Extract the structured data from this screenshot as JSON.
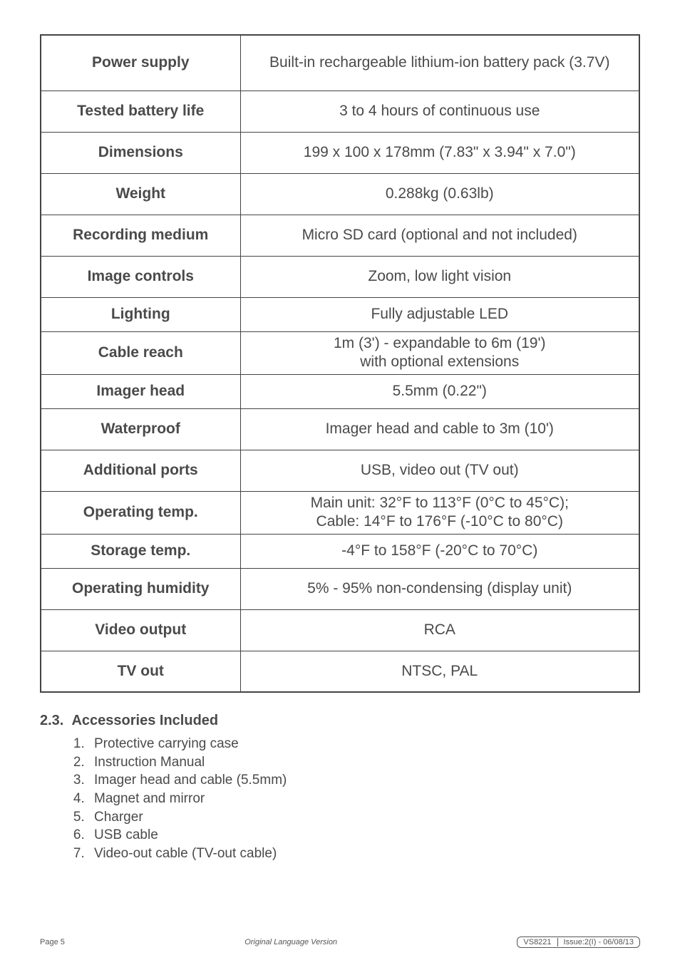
{
  "table": {
    "rows": [
      {
        "label": "Power supply",
        "value": "Built-in rechargeable lithium-ion battery pack (3.7V)",
        "height": "h-tall"
      },
      {
        "label": "Tested battery life",
        "value": "3 to 4 hours of continuous use",
        "height": "h-med"
      },
      {
        "label": "Dimensions",
        "value": "199 x 100 x 178mm (7.83\" x 3.94\" x 7.0\")",
        "height": "h-med"
      },
      {
        "label": "Weight",
        "value": "0.288kg (0.63lb)",
        "height": "h-med"
      },
      {
        "label": "Recording medium",
        "value": "Micro SD card (optional and not included)",
        "height": "h-med"
      },
      {
        "label": "Image controls",
        "value": "Zoom, low light vision",
        "height": "h-med"
      },
      {
        "label": "Lighting",
        "value": "Fully adjustable LED",
        "height": "h-short"
      },
      {
        "label": "Cable reach",
        "value": "1m (3') - expandable to 6m (19')\nwith optional extensions",
        "height": "h-two",
        "multiline": true
      },
      {
        "label": "Imager head",
        "value": "5.5mm (0.22\")",
        "height": "h-short"
      },
      {
        "label": "Waterproof",
        "value": "Imager head and cable to 3m (10')",
        "height": "h-med"
      },
      {
        "label": "Additional ports",
        "value": "USB, video out (TV out)",
        "height": "h-med"
      },
      {
        "label": "Operating temp.",
        "value": "Main unit: 32°F to 113°F (0°C to 45°C);\nCable: 14°F to 176°F (-10°C to 80°C)",
        "height": "h-two",
        "multiline": true
      },
      {
        "label": "Storage temp.",
        "value": "-4°F to 158°F (-20°C to 70°C)",
        "height": "h-short"
      },
      {
        "label": "Operating humidity",
        "value": "5% - 95% non-condensing (display unit)",
        "height": "h-med"
      },
      {
        "label": "Video output",
        "value": "RCA",
        "height": "h-med"
      },
      {
        "label": "TV out",
        "value": "NTSC, PAL",
        "height": "h-med"
      }
    ]
  },
  "section": {
    "number": "2.3.",
    "title": "Accessories Included"
  },
  "accessories": [
    "Protective carrying case",
    "Instruction Manual",
    "Imager head and cable (5.5mm)",
    "Magnet and mirror",
    "Charger",
    "USB cable",
    "Video-out cable (TV-out cable)"
  ],
  "footer": {
    "pageLabel": "Page 5",
    "center": "Original Language Version",
    "badgeModel": "VS8221",
    "badgeIssue": "Issue:2(I) - 06/08/13"
  }
}
